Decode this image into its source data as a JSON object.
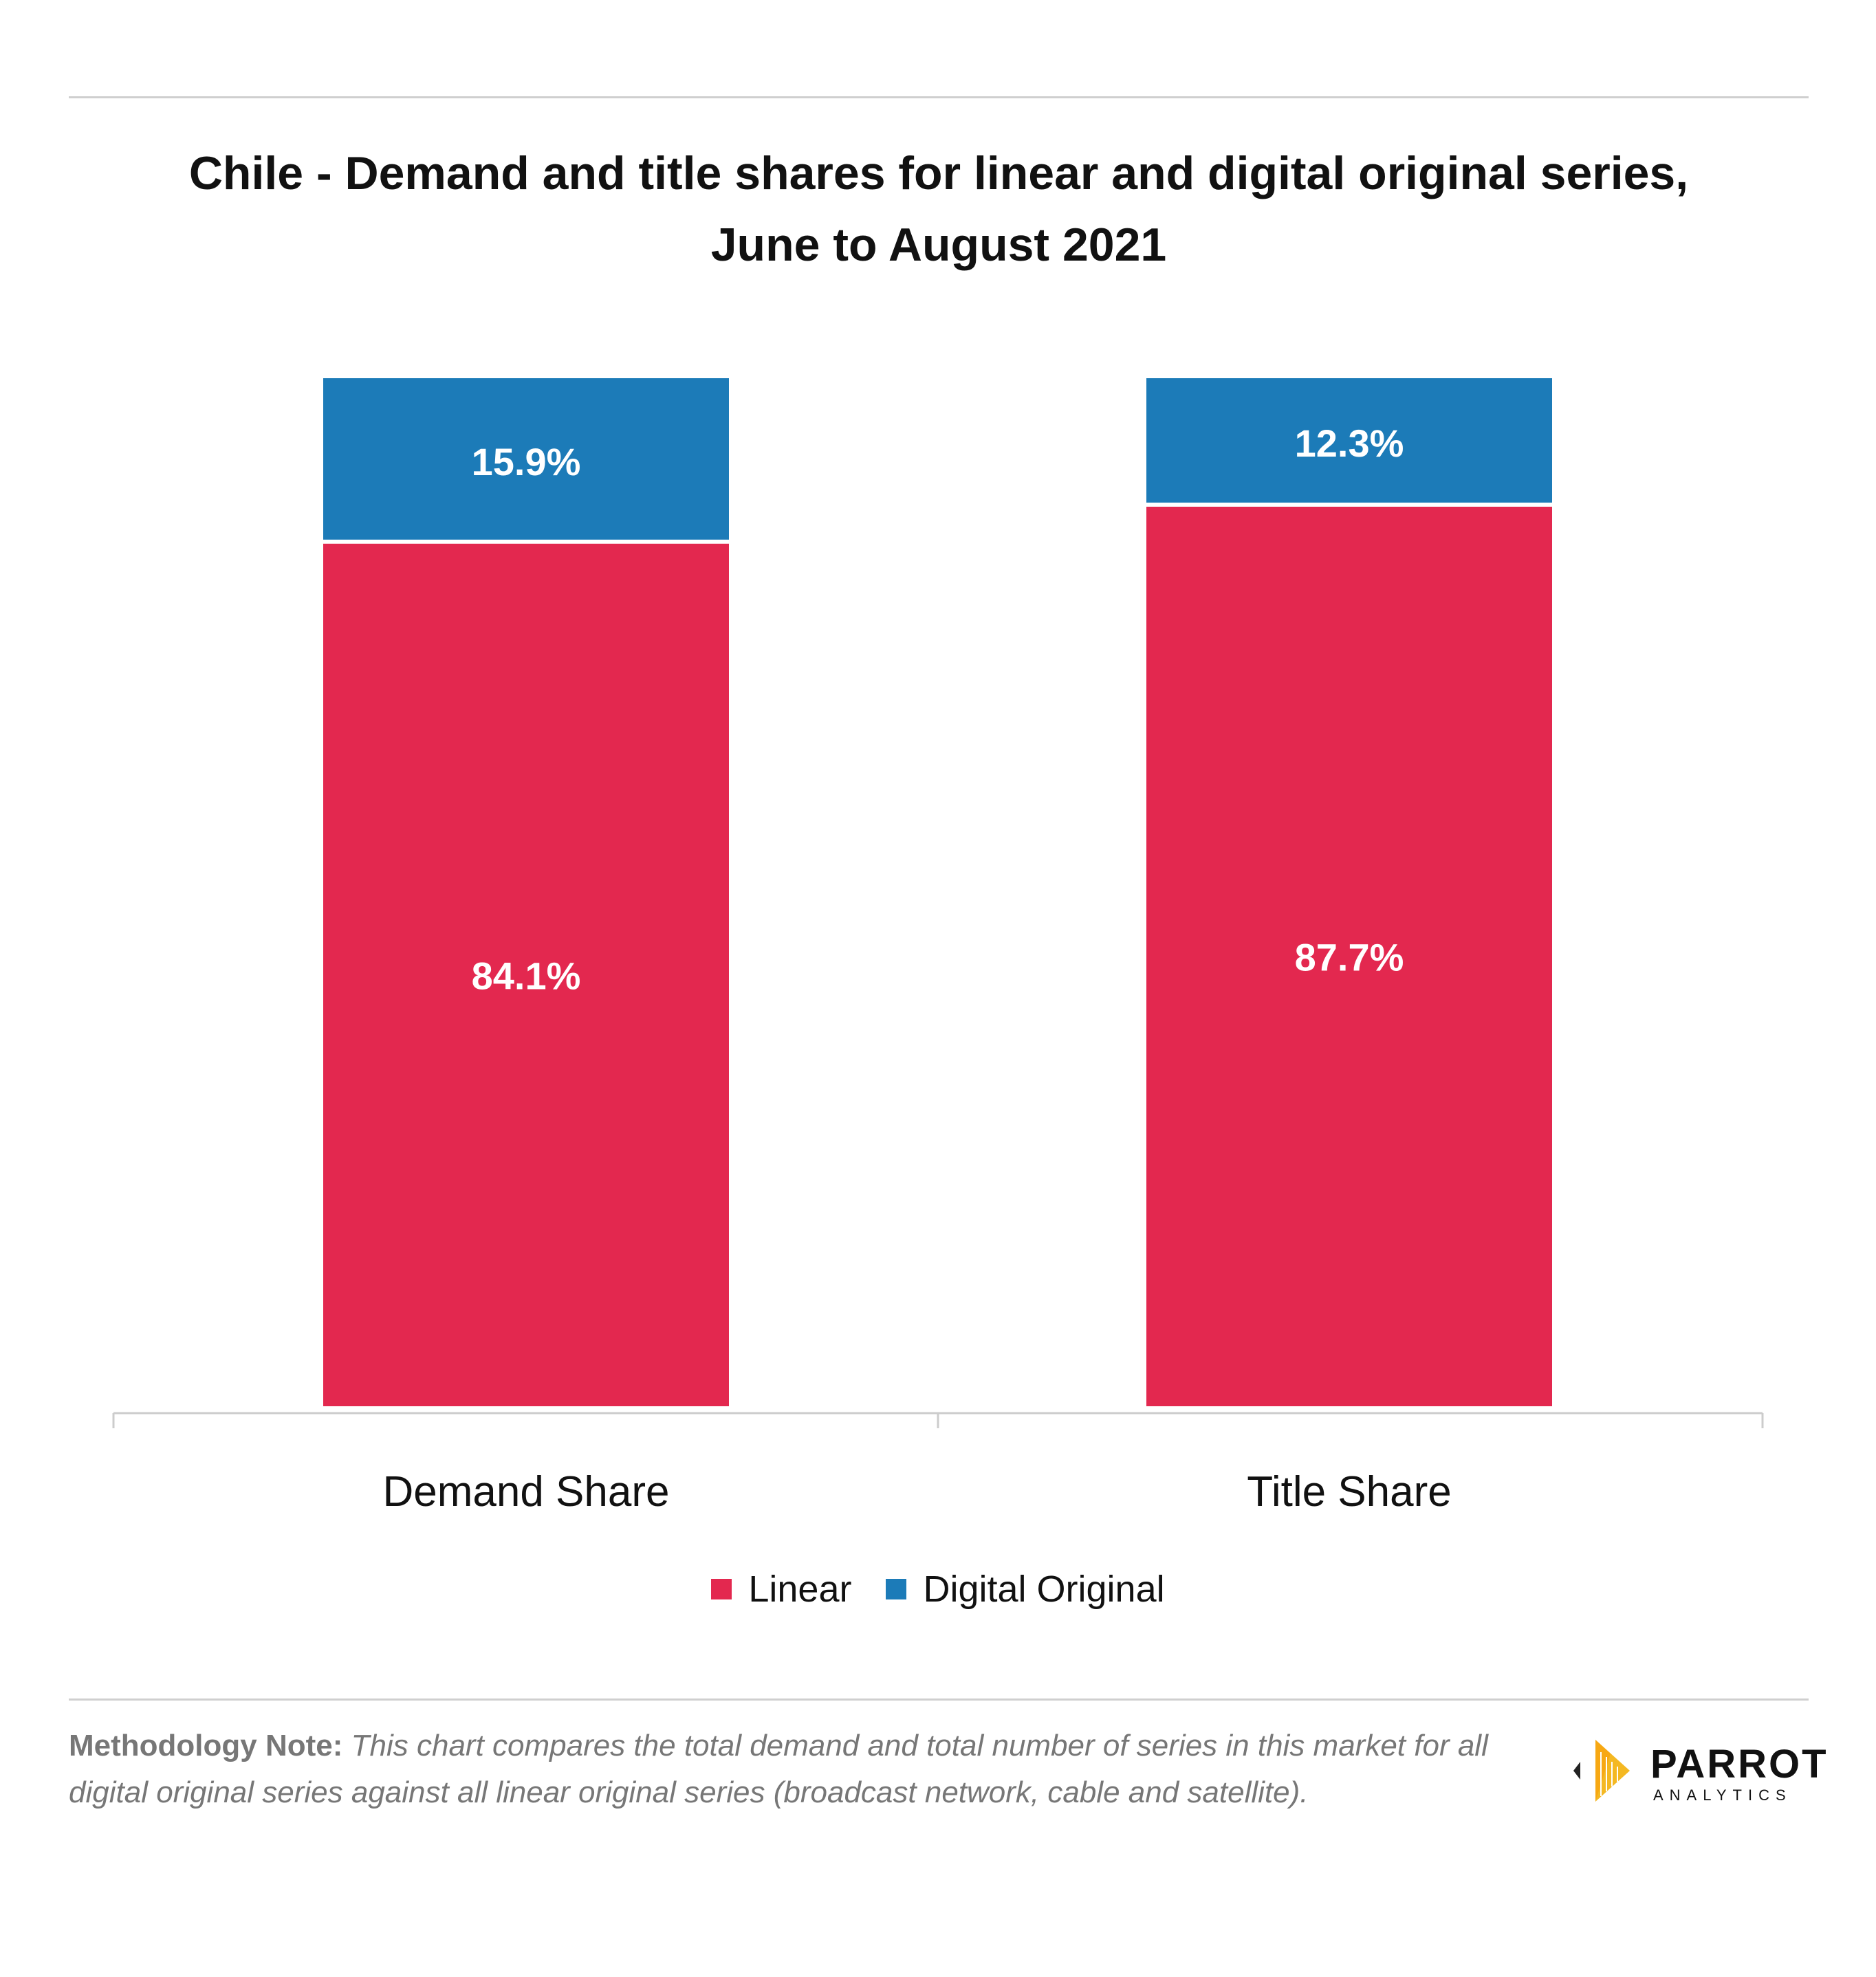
{
  "title": "Chile - Demand and title shares for linear and digital original series, June to August 2021",
  "chart_data": {
    "type": "bar",
    "stacked": true,
    "categories": [
      "Demand Share",
      "Title Share"
    ],
    "series": [
      {
        "name": "Linear",
        "color": "#e3284f",
        "values": [
          84.1,
          87.7
        ],
        "labels": [
          "84.1%",
          "87.7%"
        ]
      },
      {
        "name": "Digital Original",
        "color": "#1c7bb8",
        "values": [
          15.9,
          12.3
        ],
        "labels": [
          "15.9%",
          "12.3%"
        ]
      }
    ],
    "ylim": [
      0,
      100
    ],
    "grid": false,
    "legend": "bottom"
  },
  "legend": {
    "items": [
      {
        "label": "Linear",
        "color": "#e3284f"
      },
      {
        "label": "Digital Original",
        "color": "#1c7bb8"
      }
    ]
  },
  "note": {
    "label": "Methodology Note:",
    "text": "This chart compares the total demand and total number of series in this market for all digital original series against all linear original series (broadcast network, cable and satellite)."
  },
  "logo": {
    "word": "PARROT",
    "sub": "ANALYTICS",
    "icon": "parrot-analytics-logo-icon"
  }
}
